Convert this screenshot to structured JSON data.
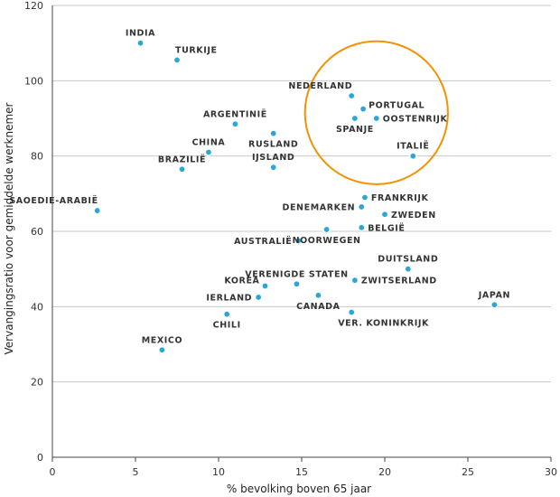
{
  "chart_data": {
    "type": "scatter",
    "title": "",
    "xlabel": "% bevolking boven 65 jaar",
    "ylabel": "Vervangingsratio voor gemiddelde werknemer",
    "xlim": [
      0,
      30
    ],
    "ylim": [
      0,
      120
    ],
    "xticks": [
      0,
      5,
      10,
      15,
      20,
      25,
      30
    ],
    "yticks": [
      0,
      20,
      40,
      60,
      80,
      100,
      120
    ],
    "grid": "horizontal",
    "colors": {
      "point_fill": "#2aa7d8",
      "point_stroke": "#ffffff",
      "highlight_circle": "#f39200"
    },
    "highlight": {
      "cx": 19.5,
      "cy": 91.5,
      "rx": 4.3,
      "ry": 19,
      "members": [
        "NEDERLAND",
        "PORTUGAL",
        "OOSTENRIJK",
        "SPANJE",
        "ITALIË"
      ]
    },
    "points": [
      {
        "label": "INDIA",
        "x": 5.3,
        "y": 110,
        "anchor": "above"
      },
      {
        "label": "TURKIJE",
        "x": 7.5,
        "y": 105.5,
        "anchor": "above-right"
      },
      {
        "label": "ARGENTINIË",
        "x": 11.0,
        "y": 88.5,
        "anchor": "above"
      },
      {
        "label": "RUSLAND",
        "x": 13.3,
        "y": 86,
        "anchor": "below"
      },
      {
        "label": "CHINA",
        "x": 9.4,
        "y": 81,
        "anchor": "above"
      },
      {
        "label": "BRAZILIË",
        "x": 7.8,
        "y": 76.5,
        "anchor": "above"
      },
      {
        "label": "IJSLAND",
        "x": 13.3,
        "y": 77,
        "anchor": "above"
      },
      {
        "label": "SAOEDIE-ARABIË",
        "x": 2.7,
        "y": 65.5,
        "anchor": "above-left"
      },
      {
        "label": "NEDERLAND",
        "x": 18.0,
        "y": 96,
        "anchor": "above-left"
      },
      {
        "label": "PORTUGAL",
        "x": 18.7,
        "y": 92.5,
        "anchor": "right-up"
      },
      {
        "label": "OOSTENRIJK",
        "x": 19.5,
        "y": 90,
        "anchor": "right"
      },
      {
        "label": "SPANJE",
        "x": 18.2,
        "y": 90,
        "anchor": "below"
      },
      {
        "label": "ITALIË",
        "x": 21.7,
        "y": 80,
        "anchor": "above"
      },
      {
        "label": "FRANKRIJK",
        "x": 18.8,
        "y": 69,
        "anchor": "right"
      },
      {
        "label": "DENEMARKEN",
        "x": 18.6,
        "y": 66.5,
        "anchor": "left"
      },
      {
        "label": "ZWEDEN",
        "x": 20.0,
        "y": 64.5,
        "anchor": "right"
      },
      {
        "label": "BELGIË",
        "x": 18.6,
        "y": 61,
        "anchor": "right"
      },
      {
        "label": "NOORWEGEN",
        "x": 16.5,
        "y": 60.5,
        "anchor": "below"
      },
      {
        "label": "AUSTRALIË",
        "x": 14.8,
        "y": 57.5,
        "anchor": "left"
      },
      {
        "label": "DUITSLAND",
        "x": 21.4,
        "y": 50,
        "anchor": "above"
      },
      {
        "label": "ZWITSERLAND",
        "x": 18.2,
        "y": 47,
        "anchor": "right"
      },
      {
        "label": "VERENIGDE STATEN",
        "x": 14.7,
        "y": 46,
        "anchor": "above"
      },
      {
        "label": "KOREA",
        "x": 12.8,
        "y": 45.5,
        "anchor": "left-up"
      },
      {
        "label": "IERLAND",
        "x": 12.4,
        "y": 42.5,
        "anchor": "left"
      },
      {
        "label": "CANADA",
        "x": 16.0,
        "y": 43,
        "anchor": "below"
      },
      {
        "label": "JAPAN",
        "x": 26.6,
        "y": 40.5,
        "anchor": "above"
      },
      {
        "label": "VER. KONINKRIJK",
        "x": 18.0,
        "y": 38.5,
        "anchor": "below-right"
      },
      {
        "label": "CHILI",
        "x": 10.5,
        "y": 38,
        "anchor": "below"
      },
      {
        "label": "MEXICO",
        "x": 6.6,
        "y": 28.5,
        "anchor": "above"
      }
    ]
  }
}
